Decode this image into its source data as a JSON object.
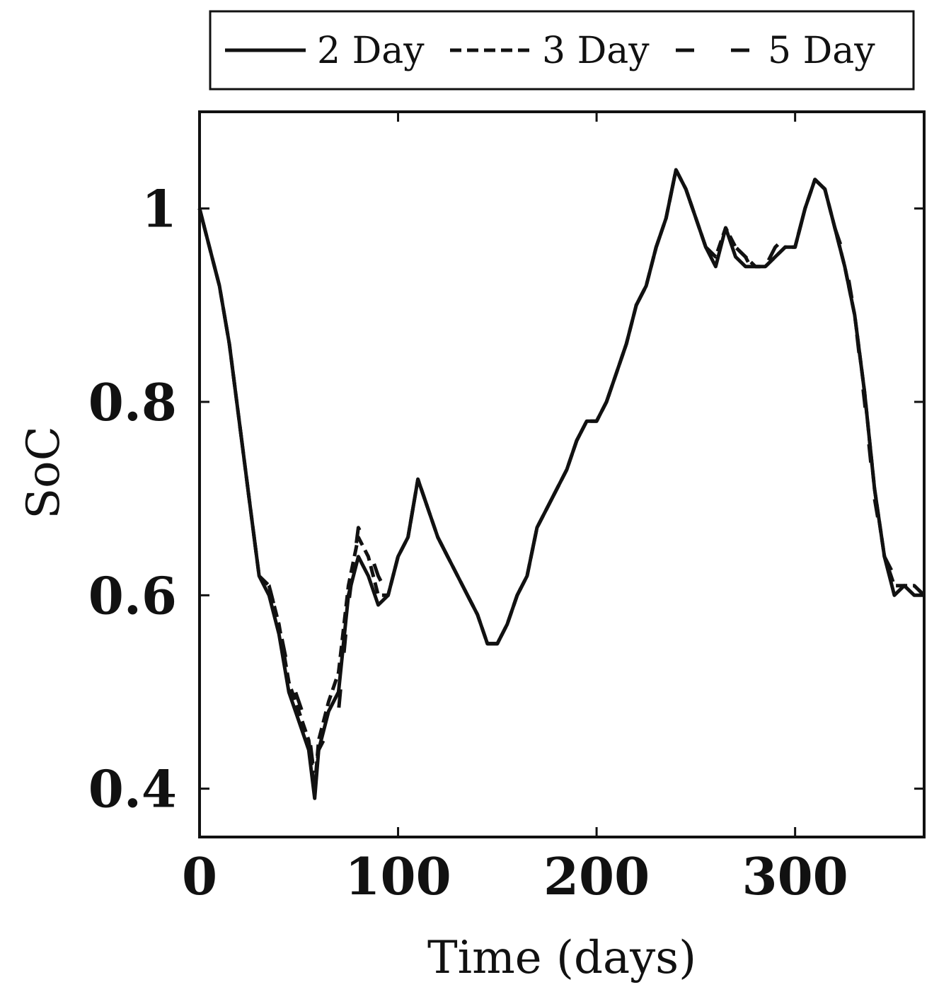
{
  "chart_data": {
    "type": "line",
    "title": "",
    "xlabel": "Time (days)",
    "ylabel": "SoC",
    "xlim": [
      0,
      365
    ],
    "ylim": [
      0.35,
      1.1
    ],
    "xticks": [
      0,
      100,
      200,
      300
    ],
    "xtick_labels": [
      "0",
      "100",
      "200",
      "300"
    ],
    "yticks": [
      0.4,
      0.6,
      0.8,
      1.0
    ],
    "ytick_labels": [
      "0.4",
      "0.6",
      "0.8",
      "1"
    ],
    "grid": false,
    "legend": {
      "placement": "top, above plot",
      "entries": [
        "2 Day",
        "3 Day",
        "5 Day"
      ]
    },
    "colors": {
      "line": "#111111"
    },
    "series": [
      {
        "name": "2 Day",
        "style": "solid",
        "x": [
          0,
          5,
          10,
          15,
          20,
          25,
          30,
          35,
          40,
          45,
          50,
          55,
          58,
          60,
          65,
          70,
          75,
          80,
          85,
          90,
          95,
          100,
          105,
          110,
          115,
          120,
          125,
          130,
          135,
          140,
          145,
          150,
          155,
          160,
          165,
          170,
          175,
          180,
          185,
          190,
          195,
          200,
          205,
          210,
          215,
          220,
          225,
          230,
          235,
          240,
          245,
          250,
          255,
          260,
          265,
          270,
          275,
          280,
          285,
          290,
          295,
          300,
          305,
          310,
          315,
          320,
          325,
          330,
          335,
          340,
          345,
          350,
          355,
          360,
          365
        ],
        "y": [
          1.0,
          0.96,
          0.92,
          0.86,
          0.78,
          0.7,
          0.62,
          0.6,
          0.56,
          0.5,
          0.47,
          0.44,
          0.39,
          0.44,
          0.48,
          0.5,
          0.6,
          0.64,
          0.62,
          0.59,
          0.6,
          0.64,
          0.66,
          0.72,
          0.69,
          0.66,
          0.64,
          0.62,
          0.6,
          0.58,
          0.55,
          0.55,
          0.57,
          0.6,
          0.62,
          0.67,
          0.69,
          0.71,
          0.73,
          0.76,
          0.78,
          0.78,
          0.8,
          0.83,
          0.86,
          0.9,
          0.92,
          0.96,
          0.99,
          1.04,
          1.02,
          0.99,
          0.96,
          0.94,
          0.98,
          0.95,
          0.94,
          0.94,
          0.94,
          0.95,
          0.96,
          0.96,
          1.0,
          1.03,
          1.02,
          0.98,
          0.94,
          0.89,
          0.81,
          0.71,
          0.64,
          0.6,
          0.61,
          0.6,
          0.6
        ]
      },
      {
        "name": "3 Day",
        "style": "dashed",
        "x": [
          0,
          5,
          10,
          15,
          20,
          25,
          30,
          35,
          40,
          45,
          50,
          55,
          58,
          60,
          65,
          70,
          75,
          80,
          85,
          90,
          95,
          100,
          105,
          110,
          115,
          120,
          125,
          130,
          135,
          140,
          145,
          150,
          155,
          160,
          165,
          170,
          175,
          180,
          185,
          190,
          195,
          200,
          205,
          210,
          215,
          220,
          225,
          230,
          235,
          240,
          245,
          250,
          255,
          260,
          265,
          270,
          275,
          280,
          285,
          290,
          295,
          300,
          305,
          310,
          315,
          320,
          325,
          330,
          335,
          340,
          345,
          350,
          355,
          360,
          365
        ],
        "y": [
          1.0,
          0.96,
          0.92,
          0.86,
          0.78,
          0.7,
          0.62,
          0.61,
          0.57,
          0.51,
          0.48,
          0.45,
          0.4,
          0.45,
          0.49,
          0.52,
          0.61,
          0.66,
          0.64,
          0.6,
          0.6,
          0.64,
          0.66,
          0.72,
          0.69,
          0.66,
          0.64,
          0.62,
          0.6,
          0.58,
          0.55,
          0.55,
          0.57,
          0.6,
          0.62,
          0.67,
          0.69,
          0.71,
          0.73,
          0.76,
          0.78,
          0.78,
          0.8,
          0.83,
          0.86,
          0.9,
          0.92,
          0.96,
          0.99,
          1.04,
          1.02,
          0.99,
          0.96,
          0.95,
          0.98,
          0.96,
          0.95,
          0.94,
          0.94,
          0.95,
          0.96,
          0.96,
          1.0,
          1.03,
          1.02,
          0.98,
          0.94,
          0.89,
          0.81,
          0.71,
          0.64,
          0.61,
          0.61,
          0.61,
          0.6
        ]
      },
      {
        "name": "5 Day",
        "style": "long-dashed",
        "x": [
          0,
          5,
          10,
          15,
          20,
          25,
          30,
          35,
          40,
          45,
          50,
          55,
          58,
          60,
          65,
          70,
          75,
          80,
          85,
          90,
          95,
          100,
          105,
          110,
          115,
          120,
          125,
          130,
          135,
          140,
          145,
          150,
          155,
          160,
          165,
          170,
          175,
          180,
          185,
          190,
          195,
          200,
          205,
          210,
          215,
          220,
          225,
          230,
          235,
          240,
          245,
          250,
          255,
          260,
          265,
          270,
          275,
          280,
          285,
          290,
          295,
          300,
          305,
          310,
          315,
          320,
          325,
          330,
          335,
          340,
          345,
          350,
          355,
          360,
          365
        ],
        "y": [
          1.0,
          0.96,
          0.92,
          0.86,
          0.78,
          0.7,
          0.62,
          0.61,
          0.57,
          0.52,
          0.49,
          0.46,
          0.41,
          0.44,
          0.46,
          0.48,
          0.59,
          0.67,
          0.65,
          0.62,
          0.6,
          0.64,
          0.66,
          0.72,
          0.69,
          0.66,
          0.64,
          0.62,
          0.6,
          0.58,
          0.55,
          0.55,
          0.57,
          0.6,
          0.62,
          0.67,
          0.69,
          0.71,
          0.73,
          0.76,
          0.78,
          0.78,
          0.8,
          0.83,
          0.86,
          0.9,
          0.92,
          0.96,
          0.99,
          1.04,
          1.02,
          0.99,
          0.96,
          0.95,
          0.97,
          0.96,
          0.95,
          0.93,
          0.94,
          0.96,
          0.97,
          0.96,
          1.0,
          1.03,
          1.02,
          0.98,
          0.95,
          0.89,
          0.8,
          0.7,
          0.64,
          0.62,
          0.62,
          0.61,
          0.6
        ]
      }
    ]
  }
}
